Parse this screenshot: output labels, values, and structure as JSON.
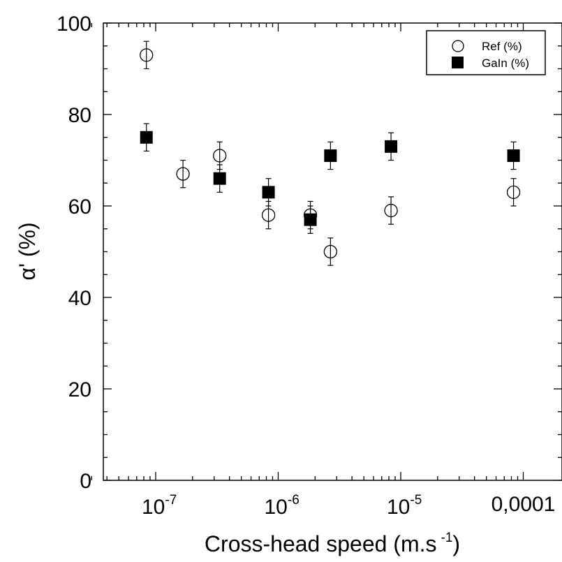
{
  "chart_data": {
    "type": "scatter",
    "title": "",
    "xlabel": "Cross-head speed (m.s",
    "xlabel_superscript": "-1",
    "xlabel_suffix": ")",
    "ylabel": "α' (%)",
    "xscale": "log",
    "xlim": [
      3e-08,
      0.00018
    ],
    "ylim": [
      0,
      100
    ],
    "grid": false,
    "legend_position": "top-right",
    "x_tick_labels": [
      {
        "value": 1e-07,
        "base": "10",
        "exp": "-7"
      },
      {
        "value": 1e-06,
        "base": "10",
        "exp": "-6"
      },
      {
        "value": 1e-05,
        "base": "10",
        "exp": "-5"
      },
      {
        "value": 0.0001,
        "text": "0,0001"
      }
    ],
    "y_ticks": [
      0,
      20,
      40,
      60,
      80,
      100
    ],
    "series": [
      {
        "name": "Ref (%)",
        "marker": "open-circle",
        "color": "#000000",
        "points": [
          {
            "x": 8.4e-08,
            "y": 93,
            "err": 3
          },
          {
            "x": 1.67e-07,
            "y": 67,
            "err": 3
          },
          {
            "x": 3.33e-07,
            "y": 71,
            "err": 3
          },
          {
            "x": 8.33e-07,
            "y": 58,
            "err": 3
          },
          {
            "x": 1.83e-06,
            "y": 58,
            "err": 3
          },
          {
            "x": 2.67e-06,
            "y": 50,
            "err": 3
          },
          {
            "x": 8.33e-06,
            "y": 59,
            "err": 3
          },
          {
            "x": 8.33e-05,
            "y": 63,
            "err": 3
          }
        ]
      },
      {
        "name": "GaIn (%)",
        "marker": "filled-square",
        "color": "#000000",
        "points": [
          {
            "x": 8.4e-08,
            "y": 75,
            "err": 3
          },
          {
            "x": 3.33e-07,
            "y": 66,
            "err": 3
          },
          {
            "x": 8.33e-07,
            "y": 63,
            "err": 3
          },
          {
            "x": 1.83e-06,
            "y": 57,
            "err": 3
          },
          {
            "x": 2.67e-06,
            "y": 71,
            "err": 3
          },
          {
            "x": 8.33e-06,
            "y": 73,
            "err": 3
          },
          {
            "x": 8.33e-05,
            "y": 71,
            "err": 3
          }
        ]
      }
    ]
  }
}
